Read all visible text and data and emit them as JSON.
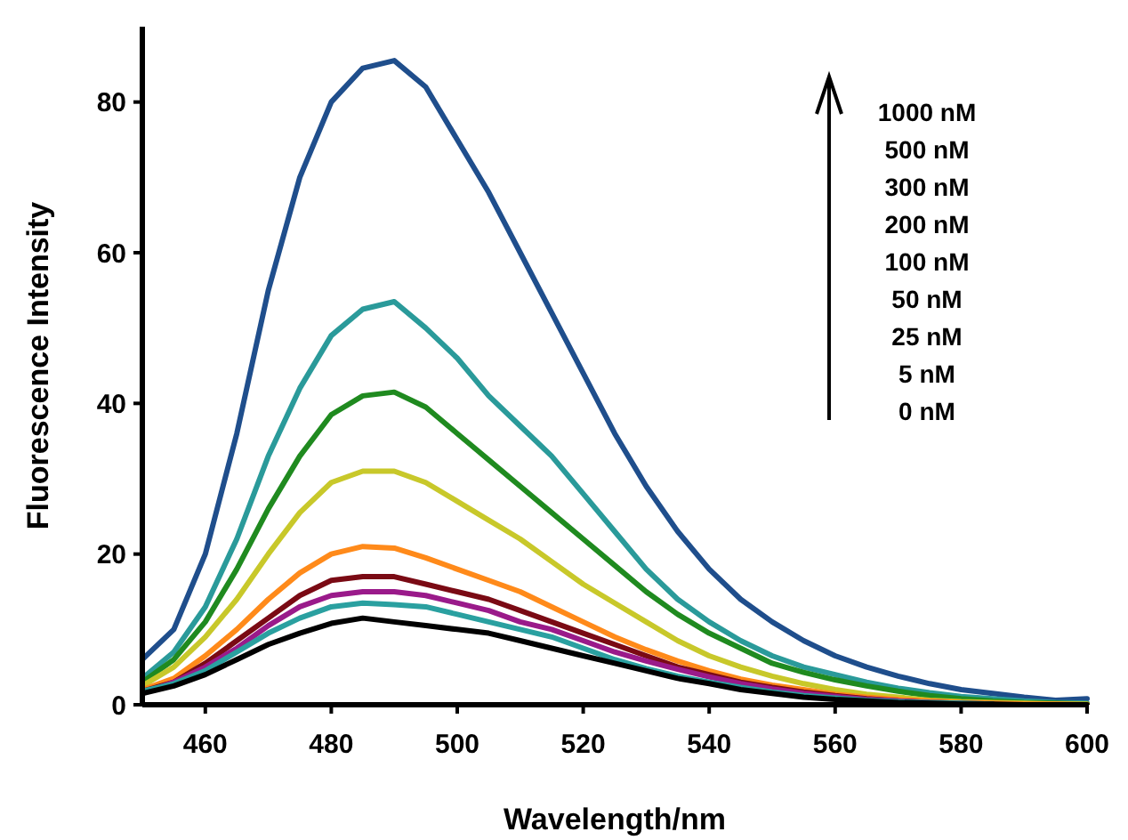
{
  "chart_data": {
    "type": "line",
    "xlabel": "Wavelength/nm",
    "ylabel": "Fluorescence Intensity",
    "x": [
      450,
      455,
      460,
      465,
      470,
      475,
      480,
      485,
      490,
      495,
      500,
      505,
      510,
      515,
      520,
      525,
      530,
      535,
      540,
      545,
      550,
      555,
      560,
      565,
      570,
      575,
      580,
      585,
      590,
      595,
      600
    ],
    "xlim": [
      450,
      600
    ],
    "xticks": [
      460,
      480,
      500,
      520,
      540,
      560,
      580,
      600
    ],
    "ylim": [
      0,
      90
    ],
    "yticks": [
      0,
      20,
      40,
      60,
      80
    ],
    "grid": false,
    "line_style": "solid",
    "marker": "none",
    "series": [
      {
        "color": "#1f4e8c",
        "values": [
          6,
          10,
          20,
          36,
          55,
          70,
          80,
          84.5,
          85.5,
          82,
          75,
          68,
          60,
          52,
          44,
          36,
          29,
          23,
          18,
          14,
          11,
          8.5,
          6.5,
          5,
          3.8,
          2.8,
          2,
          1.5,
          1,
          0.6,
          0.8
        ]
      },
      {
        "color": "#2a9a9a",
        "values": [
          3.5,
          7,
          13,
          22,
          33,
          42,
          49,
          52.5,
          53.5,
          50,
          46,
          41,
          37,
          33,
          28,
          23,
          18,
          14,
          11,
          8.5,
          6.5,
          5,
          4,
          3,
          2.2,
          1.6,
          1.1,
          0.8,
          0.5,
          0.3,
          0.2
        ]
      },
      {
        "color": "#1f8a1f",
        "values": [
          3,
          6,
          11,
          18,
          26,
          33,
          38.5,
          41,
          41.5,
          39.5,
          36,
          32.5,
          29,
          25.5,
          22,
          18.5,
          15,
          12,
          9.5,
          7.5,
          5.5,
          4.3,
          3.3,
          2.5,
          1.8,
          1.2,
          0.8,
          0.5,
          0.3,
          0.2,
          0.1
        ]
      },
      {
        "color": "#c8c82a",
        "values": [
          2.5,
          5,
          9,
          14,
          20,
          25.5,
          29.5,
          31,
          31,
          29.5,
          27,
          24.5,
          22,
          19,
          16,
          13.5,
          11,
          8.5,
          6.5,
          5,
          3.8,
          2.8,
          2,
          1.4,
          1,
          0.6,
          0.4,
          0.3,
          0.2,
          0.1,
          0.1
        ]
      },
      {
        "color": "#ff8a1a",
        "values": [
          2,
          3.5,
          6.5,
          10,
          14,
          17.5,
          20,
          21,
          20.8,
          19.5,
          18,
          16.5,
          15,
          13,
          11,
          9,
          7.3,
          5.8,
          4.5,
          3.4,
          2.6,
          2,
          1.4,
          1,
          0.7,
          0.5,
          0.3,
          0.2,
          0.1,
          0.1,
          0
        ]
      },
      {
        "color": "#7a0a14",
        "values": [
          1.8,
          3,
          5.5,
          8.5,
          11.5,
          14.5,
          16.5,
          17,
          17,
          16,
          15,
          14,
          12.5,
          11,
          9.5,
          8,
          6.5,
          5,
          4,
          3,
          2.3,
          1.7,
          1.2,
          0.8,
          0.5,
          0.3,
          0.2,
          0.1,
          null,
          null,
          null
        ]
      },
      {
        "color": "#9a1a8a",
        "values": [
          1.5,
          3,
          5,
          7.5,
          10.5,
          13,
          14.5,
          15,
          15,
          14.5,
          13.5,
          12.5,
          11,
          10,
          8.5,
          7,
          5.8,
          4.7,
          3.7,
          2.8,
          2.1,
          1.5,
          1.1,
          0.7,
          0.5,
          0.3,
          0.2,
          null,
          null,
          null,
          null
        ]
      },
      {
        "color": "#2aa0a0",
        "values": [
          1.8,
          2.8,
          4.5,
          7,
          9.5,
          11.5,
          13,
          13.5,
          13.3,
          13,
          12,
          11,
          10,
          9,
          7.5,
          6,
          4.8,
          3.8,
          3,
          2.3,
          1.7,
          1.2,
          0.9,
          0.6,
          0.4,
          0.3,
          0.2,
          0.1,
          null,
          null,
          null
        ]
      },
      {
        "color": "#000000",
        "values": [
          1.5,
          2.5,
          4,
          6,
          8,
          9.5,
          10.8,
          11.5,
          11,
          10.5,
          10,
          9.5,
          8.5,
          7.5,
          6.5,
          5.5,
          4.5,
          3.5,
          2.8,
          2,
          1.5,
          1,
          0.7,
          0.5,
          0.3,
          0.2,
          0.1,
          0.1,
          0,
          0,
          0
        ]
      }
    ],
    "annotations": [
      "1000 nM",
      "500 nM",
      "300 nM",
      "200 nM",
      "100 nM",
      "50 nM",
      "25 nM",
      "5 nM",
      "0 nM"
    ]
  }
}
